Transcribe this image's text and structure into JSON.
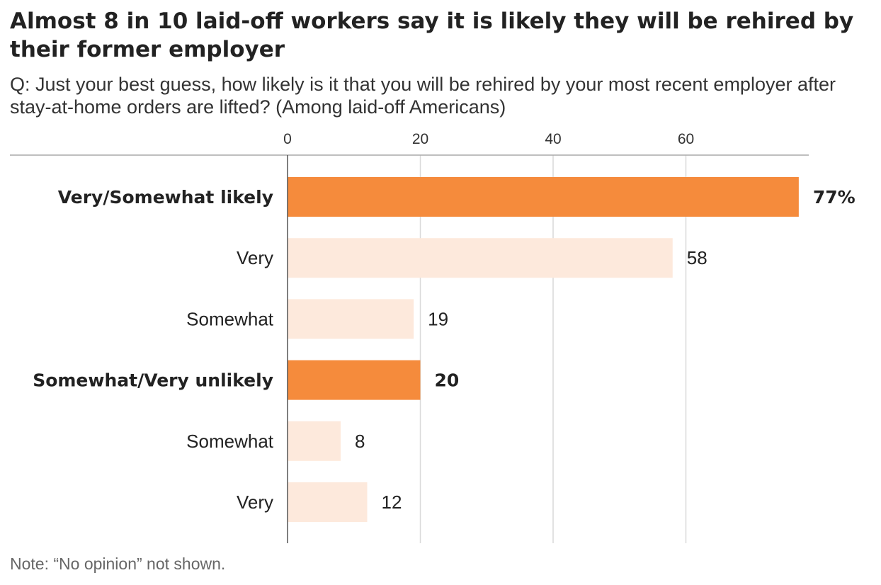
{
  "chart_data": {
    "type": "bar",
    "orientation": "horizontal",
    "title": "Almost 8 in 10 laid-off workers say it is likely they will be rehired by their former employer",
    "subtitle": "Q: Just your best guess, how likely is it that you will be rehired by your most recent employer after stay-at-home orders are lifted? (Among laid-off Americans)",
    "note": "Note: “No opinion” not shown.",
    "xlim": [
      0,
      77
    ],
    "xticks": [
      "0",
      "20",
      "40",
      "60"
    ],
    "grid": true,
    "categories": [
      {
        "label": "Very/Somewhat likely",
        "value": 77,
        "value_label": "77%",
        "group": "total"
      },
      {
        "label": "Very",
        "value": 58,
        "value_label": "58",
        "group": "detail"
      },
      {
        "label": "Somewhat",
        "value": 19,
        "value_label": "19",
        "group": "detail"
      },
      {
        "label": "Somewhat/Very unlikely",
        "value": 20,
        "value_label": "20",
        "group": "total"
      },
      {
        "label": "Somewhat",
        "value": 8,
        "value_label": "8",
        "group": "detail"
      },
      {
        "label": "Very",
        "value": 12,
        "value_label": "12",
        "group": "detail"
      }
    ],
    "colors": {
      "total": "#f58b3c",
      "detail": "#fde9dc",
      "grid": "#d9d9d9",
      "axis": "#555555"
    }
  }
}
